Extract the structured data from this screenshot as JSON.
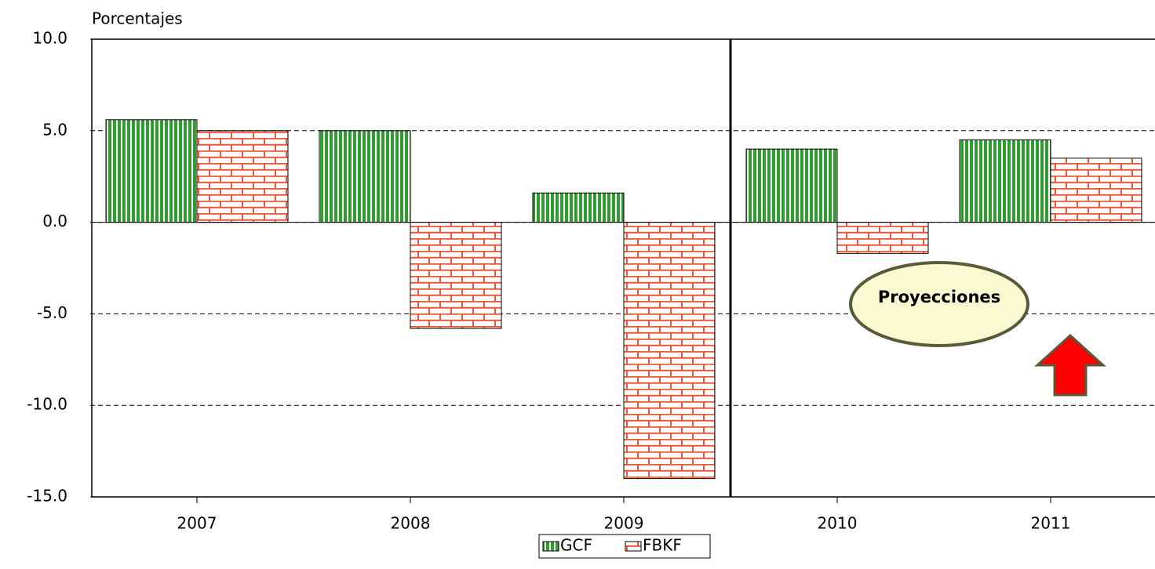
{
  "chart_data": {
    "type": "bar",
    "y_label": "Porcentajes",
    "categories": [
      "2007",
      "2008",
      "2009",
      "2010",
      "2011"
    ],
    "series": [
      {
        "name": "GCF",
        "color": "#2f9e2f",
        "values": [
          5.6,
          5.0,
          1.6,
          4.0,
          4.5
        ]
      },
      {
        "name": "FBKF",
        "color": "#e8573a",
        "values": [
          5.0,
          -5.8,
          -14.0,
          -1.7,
          3.5
        ]
      }
    ],
    "ylim": [
      -15,
      10
    ],
    "yticks": [
      {
        "value": -15,
        "label": "-15.0"
      },
      {
        "value": -10,
        "label": "-10.0"
      },
      {
        "value": -5,
        "label": "-5.0"
      },
      {
        "value": 0,
        "label": "0.0"
      },
      {
        "value": 5,
        "label": "5.0"
      },
      {
        "value": 10,
        "label": "10.0"
      }
    ],
    "grid": true,
    "annotation": "Proyecciones"
  }
}
